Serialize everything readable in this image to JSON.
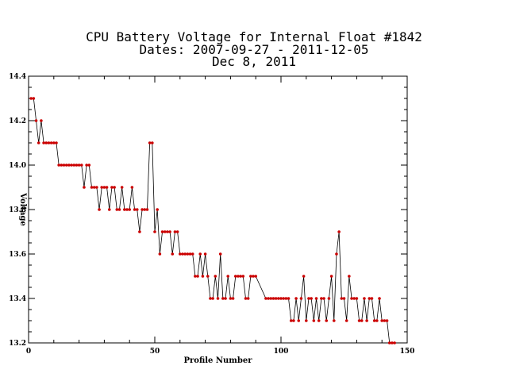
{
  "chart_data": {
    "type": "line",
    "title": [
      "CPU Battery Voltage for Internal Float #1842",
      "Dates:  2007-09-27 -  2011-12-05",
      "Dec  8, 2011"
    ],
    "xlabel": "Profile Number",
    "ylabel": "Voltage",
    "xlim": [
      0,
      150
    ],
    "ylim": [
      13.2,
      14.4
    ],
    "x_ticks": [
      "0",
      "50",
      "100",
      "150"
    ],
    "y_ticks": [
      "13.2",
      "13.4",
      "13.6",
      "13.8",
      "14.0",
      "14.2",
      "14.4"
    ],
    "grid": false,
    "line_color": "#000000",
    "marker_color": "#cc0000",
    "series": [
      {
        "x": [
          1,
          2,
          3,
          4,
          5,
          6,
          7,
          8,
          9,
          10,
          11,
          12,
          13,
          14,
          15,
          16,
          17,
          18,
          19,
          20,
          21,
          22,
          23,
          24,
          25,
          26,
          27,
          28,
          29,
          30,
          31,
          32,
          33,
          34,
          35,
          36,
          37,
          38,
          39,
          40,
          41,
          42,
          43,
          44,
          45,
          46,
          47,
          48,
          49,
          50,
          51,
          52,
          53,
          54,
          55,
          56,
          57,
          58,
          59,
          60,
          61,
          62,
          63,
          64,
          65,
          66,
          67,
          68,
          69,
          70,
          71,
          72,
          73,
          74,
          75,
          76,
          77,
          78,
          79,
          80,
          81,
          82,
          83,
          84,
          85,
          86,
          87,
          88,
          89,
          90,
          94,
          95,
          96,
          97,
          98,
          99,
          100,
          101,
          102,
          103,
          104,
          105,
          106,
          107,
          108,
          109,
          110,
          111,
          112,
          113,
          114,
          115,
          116,
          117,
          118,
          119,
          120,
          121,
          122,
          123,
          124,
          125,
          126,
          127,
          128,
          129,
          130,
          131,
          132,
          133,
          134,
          135,
          136,
          137,
          138,
          139,
          140,
          141,
          142,
          143,
          144,
          145
        ],
        "values": [
          14.3,
          14.3,
          14.2,
          14.1,
          14.2,
          14.1,
          14.1,
          14.1,
          14.1,
          14.1,
          14.1,
          14.0,
          14.0,
          14.0,
          14.0,
          14.0,
          14.0,
          14.0,
          14.0,
          14.0,
          14.0,
          13.9,
          14.0,
          14.0,
          13.9,
          13.9,
          13.9,
          13.8,
          13.9,
          13.9,
          13.9,
          13.8,
          13.9,
          13.9,
          13.8,
          13.8,
          13.9,
          13.8,
          13.8,
          13.8,
          13.9,
          13.8,
          13.8,
          13.7,
          13.8,
          13.8,
          13.8,
          14.1,
          14.1,
          13.7,
          13.8,
          13.6,
          13.7,
          13.7,
          13.7,
          13.7,
          13.6,
          13.7,
          13.7,
          13.6,
          13.6,
          13.6,
          13.6,
          13.6,
          13.6,
          13.5,
          13.5,
          13.6,
          13.5,
          13.6,
          13.5,
          13.4,
          13.4,
          13.5,
          13.4,
          13.6,
          13.4,
          13.4,
          13.5,
          13.4,
          13.4,
          13.5,
          13.5,
          13.5,
          13.5,
          13.4,
          13.4,
          13.5,
          13.5,
          13.5,
          13.4,
          13.4,
          13.4,
          13.4,
          13.4,
          13.4,
          13.4,
          13.4,
          13.4,
          13.4,
          13.3,
          13.3,
          13.4,
          13.3,
          13.4,
          13.5,
          13.3,
          13.4,
          13.4,
          13.3,
          13.4,
          13.3,
          13.4,
          13.4,
          13.3,
          13.4,
          13.5,
          13.3,
          13.6,
          13.7,
          13.4,
          13.4,
          13.3,
          13.5,
          13.4,
          13.4,
          13.4,
          13.3,
          13.3,
          13.4,
          13.3,
          13.4,
          13.4,
          13.3,
          13.3,
          13.4,
          13.3,
          13.3,
          13.3,
          13.2,
          13.2,
          13.2
        ]
      }
    ]
  }
}
